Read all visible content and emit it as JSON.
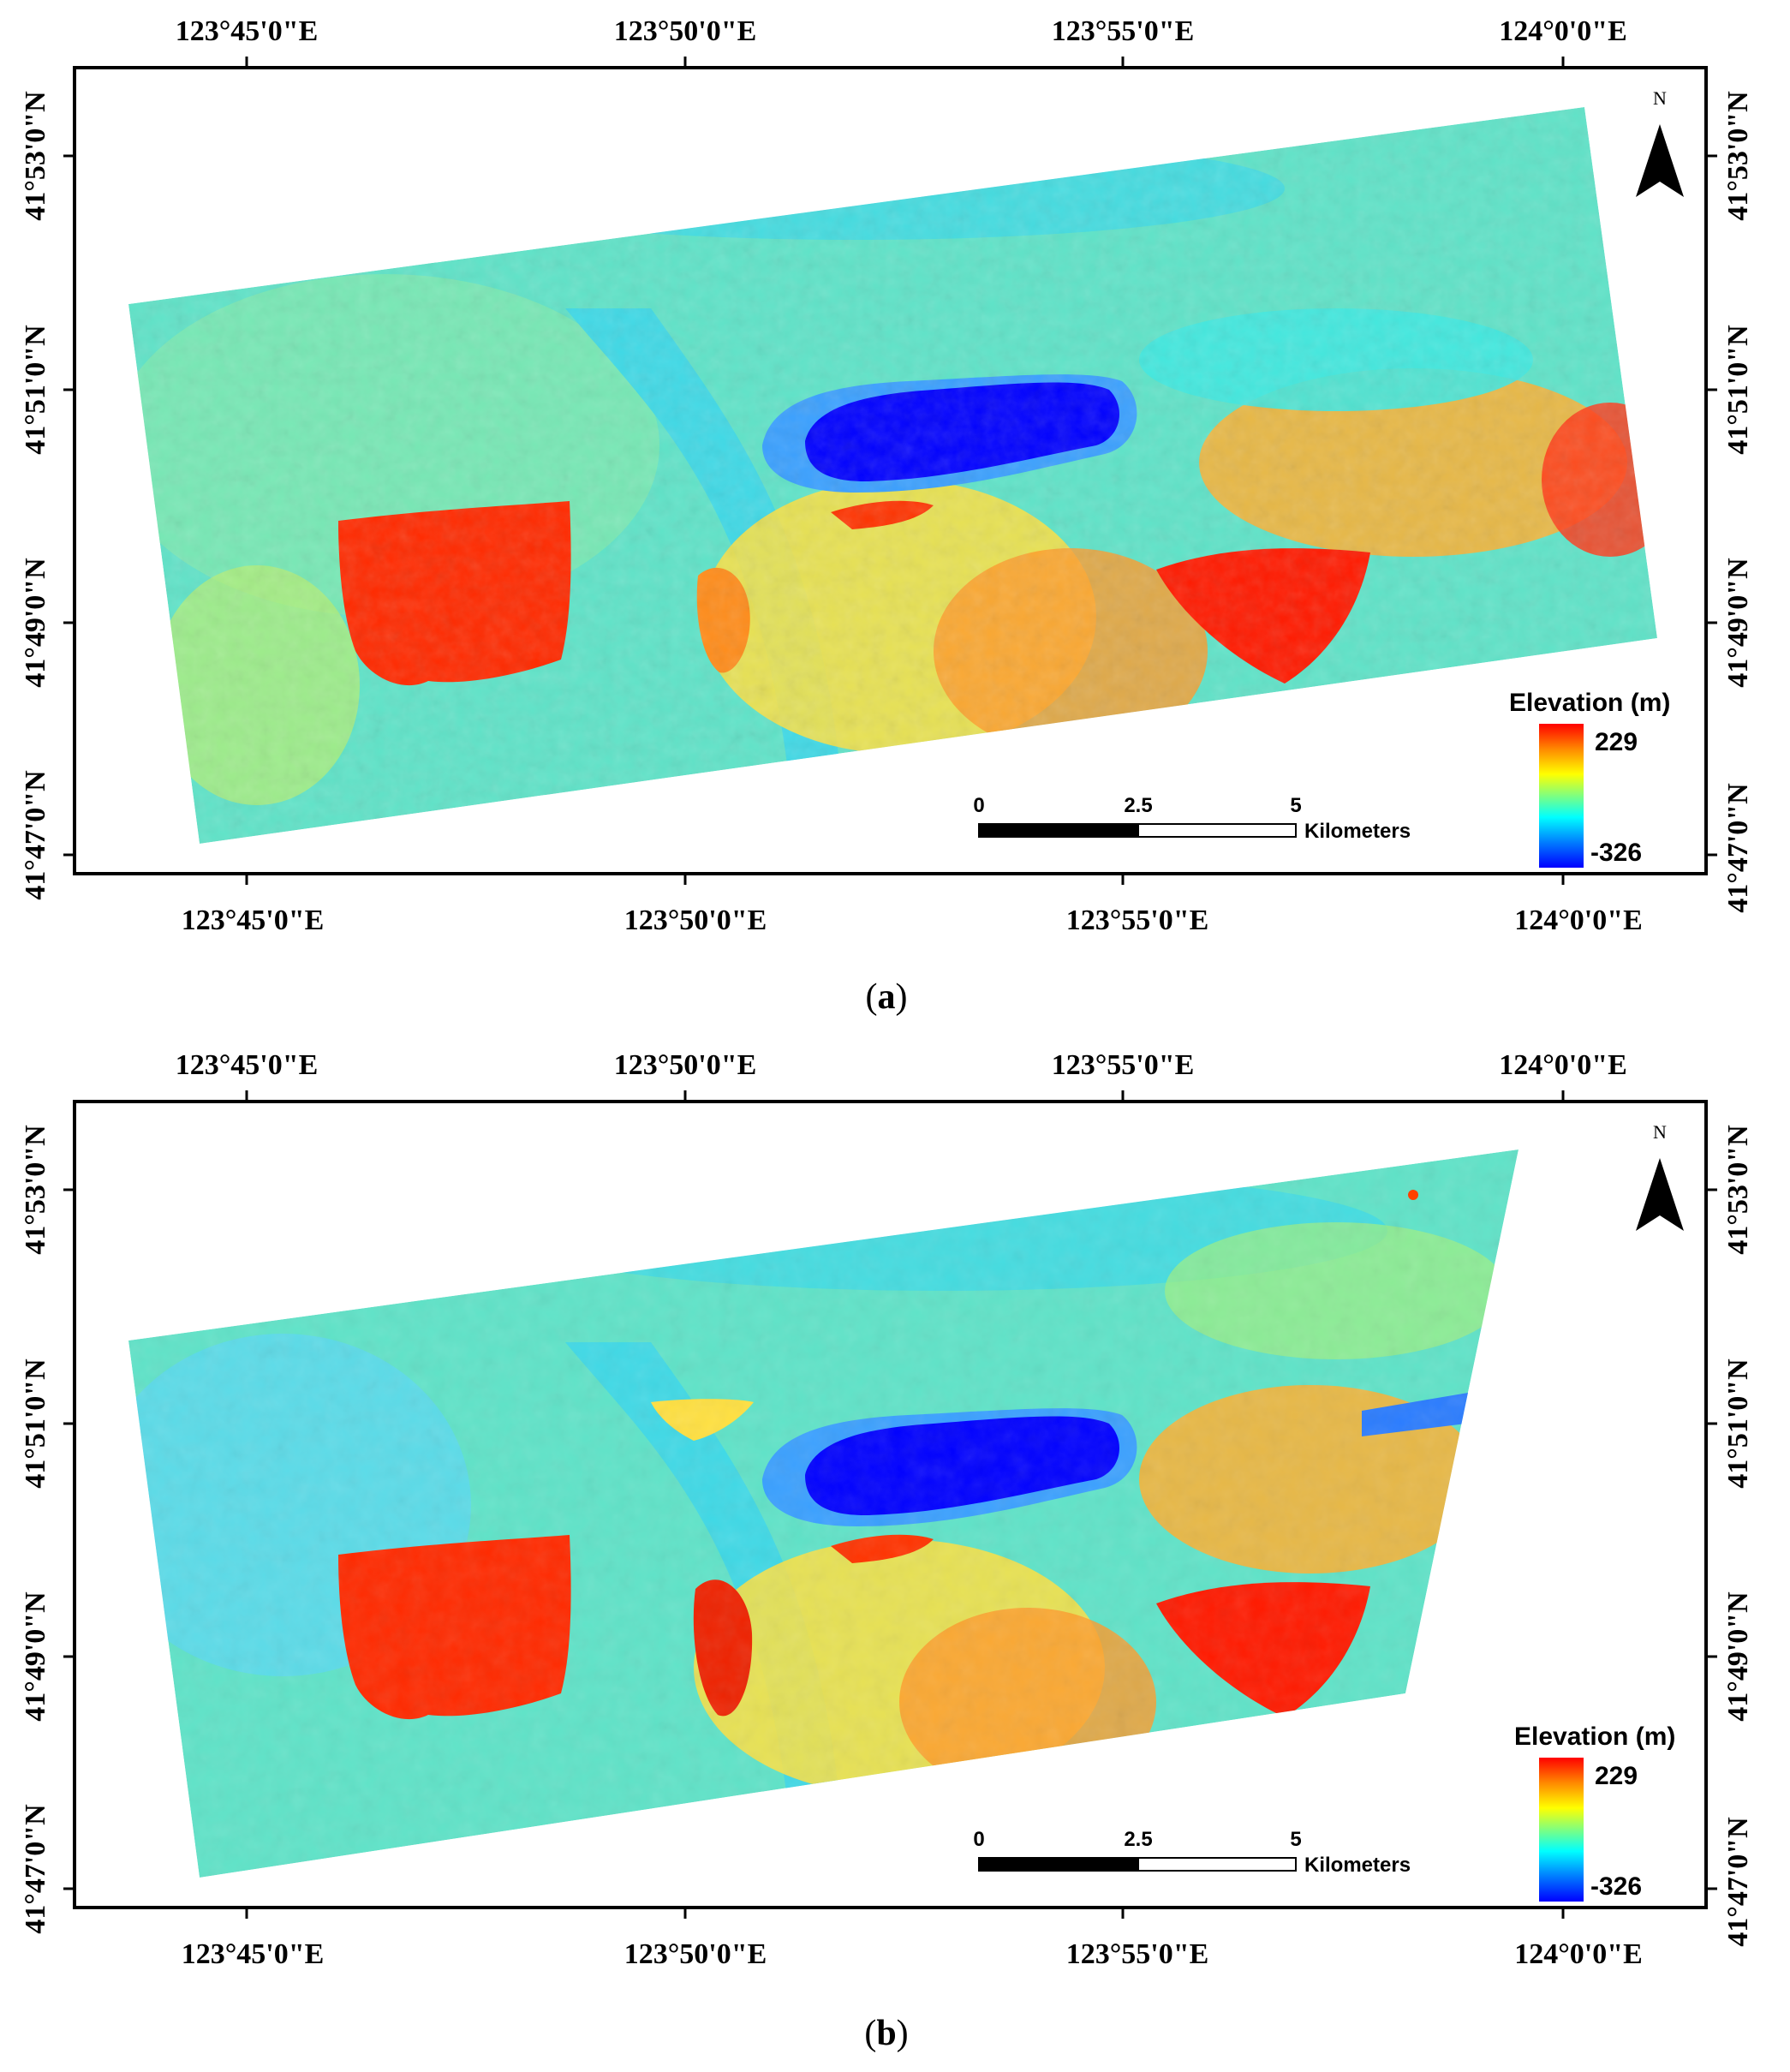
{
  "panels": [
    {
      "id": "a",
      "caption": {
        "open": "(",
        "letter": "a",
        "close": ")"
      },
      "lon_labels": [
        "123°45'0\"E",
        "123°50'0\"E",
        "123°55'0\"E",
        "124°0'0\"E"
      ],
      "lat_labels": [
        "41°53'0\"N",
        "41°51'0\"N",
        "41°49'0\"N",
        "41°47'0\"N"
      ],
      "north": "N",
      "legend": {
        "title": "Elevation (m)",
        "max": "229",
        "min": "-326"
      },
      "scalebar": {
        "ticks": [
          "0",
          "2.5",
          "5"
        ],
        "unit": "Kilometers"
      }
    },
    {
      "id": "b",
      "caption": {
        "open": "(",
        "letter": "b",
        "close": ")"
      },
      "lon_labels": [
        "123°45'0\"E",
        "123°50'0\"E",
        "123°55'0\"E",
        "124°0'0\"E"
      ],
      "lat_labels": [
        "41°53'0\"N",
        "41°51'0\"N",
        "41°49'0\"N",
        "41°47'0\"N"
      ],
      "north": "N",
      "legend": {
        "title": "Elevation (m)",
        "max": "229",
        "min": "-326"
      },
      "scalebar": {
        "ticks": [
          "0",
          "2.5",
          "5"
        ],
        "unit": "Kilometers"
      }
    }
  ],
  "colors": {
    "ramp": [
      "#ff0000",
      "#ff8c00",
      "#ffff00",
      "#7fff7f",
      "#00ffff",
      "#0080ff",
      "#0000ff"
    ],
    "high": "#ff0000",
    "mid": "#ffff40",
    "low_mid": "#40e8e0",
    "low": "#0000ff"
  }
}
